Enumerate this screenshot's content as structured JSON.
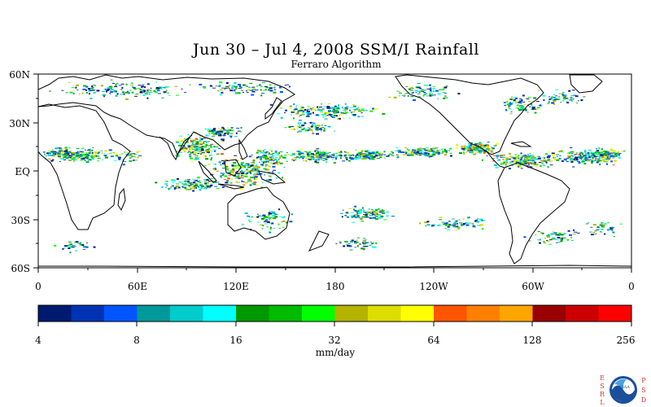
{
  "title": "Jun 30 – Jul 4, 2008 SSM/I Rainfall",
  "subtitle": "Ferraro Algorithm",
  "map": {
    "lat_labels": [
      "60N",
      "30N",
      "EQ",
      "30S",
      "60S"
    ],
    "lon_labels": [
      "0",
      "60E",
      "120E",
      "180",
      "120W",
      "60W",
      "0"
    ]
  },
  "colorbar": {
    "unit_label": "mm/day",
    "tick_labels": [
      "4",
      "8",
      "16",
      "32",
      "64",
      "128",
      "256"
    ],
    "colors": [
      "#001a70",
      "#0033b3",
      "#0055ff",
      "#009999",
      "#00cccc",
      "#00ffff",
      "#009900",
      "#00bb00",
      "#00ff00",
      "#b3b300",
      "#dddd00",
      "#ffff00",
      "#ff5500",
      "#ff7f00",
      "#ffa500",
      "#990000",
      "#cc0000",
      "#ff0000"
    ]
  },
  "logo": {
    "left_letters": "ESRL",
    "right_letters": "PSD",
    "emblem_text": "NOAA"
  }
}
